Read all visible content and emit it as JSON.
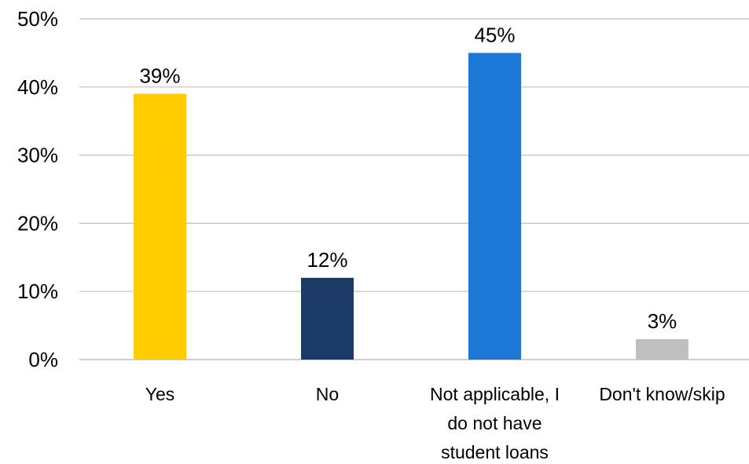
{
  "chart_data": {
    "type": "bar",
    "categories": [
      [
        "Yes"
      ],
      [
        "No"
      ],
      [
        "Not applicable, I",
        "do not have",
        "student loans"
      ],
      [
        "Don't know/skip"
      ]
    ],
    "values": [
      39,
      12,
      45,
      3
    ],
    "data_labels": [
      "39%",
      "12%",
      "45%",
      "3%"
    ],
    "colors": [
      "#FFCC00",
      "#1B3A66",
      "#1B78D6",
      "#BFBFBF"
    ],
    "ylim": [
      0,
      50
    ],
    "yticks": [
      0,
      10,
      20,
      30,
      40,
      50
    ],
    "ytick_labels": [
      "0%",
      "10%",
      "20%",
      "30%",
      "40%",
      "50%"
    ],
    "grid": true,
    "legend": "none"
  }
}
